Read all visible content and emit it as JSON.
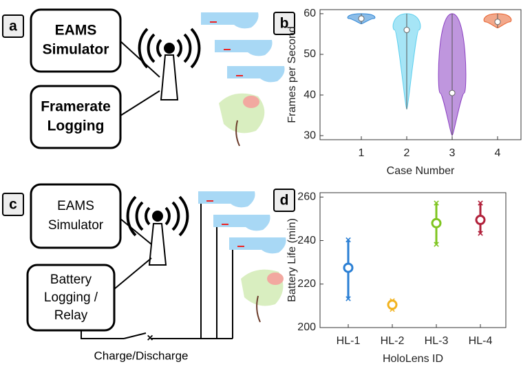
{
  "panels": {
    "a": "a",
    "b": "b",
    "c": "c",
    "d": "d"
  },
  "diagram_a": {
    "box1": [
      "EAMS",
      "Simulator"
    ],
    "box2": [
      "Framerate",
      "Logging"
    ]
  },
  "diagram_c": {
    "box1": [
      "EAMS",
      "Simulator"
    ],
    "box2": [
      "Battery",
      "Logging /",
      "Relay"
    ],
    "switch_label": "Charge/Discharge"
  },
  "chart_data": [
    {
      "type": "violin",
      "x_label": "Case Number",
      "y_label": "Frames per Second",
      "categories": [
        "1",
        "2",
        "3",
        "4"
      ],
      "median": [
        58.8,
        56,
        40.5,
        58
      ],
      "min": [
        57.5,
        36.5,
        30,
        56.5
      ],
      "max": [
        60,
        60,
        60,
        60
      ],
      "colors": [
        "#2e86d6",
        "#5ccfee",
        "#8a3fc2",
        "#e8602c"
      ],
      "ylim": [
        29,
        61
      ],
      "yticks": [
        30,
        40,
        50,
        60
      ]
    },
    {
      "type": "errorbar",
      "x_label": "HoloLens ID",
      "y_label": "Battery Life (min)",
      "categories": [
        "HL-1",
        "HL-2",
        "HL-3",
        "HL-4"
      ],
      "values": [
        227.5,
        210.5,
        248,
        249.5
      ],
      "min": [
        213,
        208,
        238,
        243
      ],
      "max": [
        240,
        212,
        257,
        257
      ],
      "colors": [
        "#2a7fd4",
        "#f2b320",
        "#7fc520",
        "#b1203a"
      ],
      "ylim": [
        200,
        262
      ],
      "yticks": [
        200,
        220,
        240,
        260
      ]
    }
  ]
}
